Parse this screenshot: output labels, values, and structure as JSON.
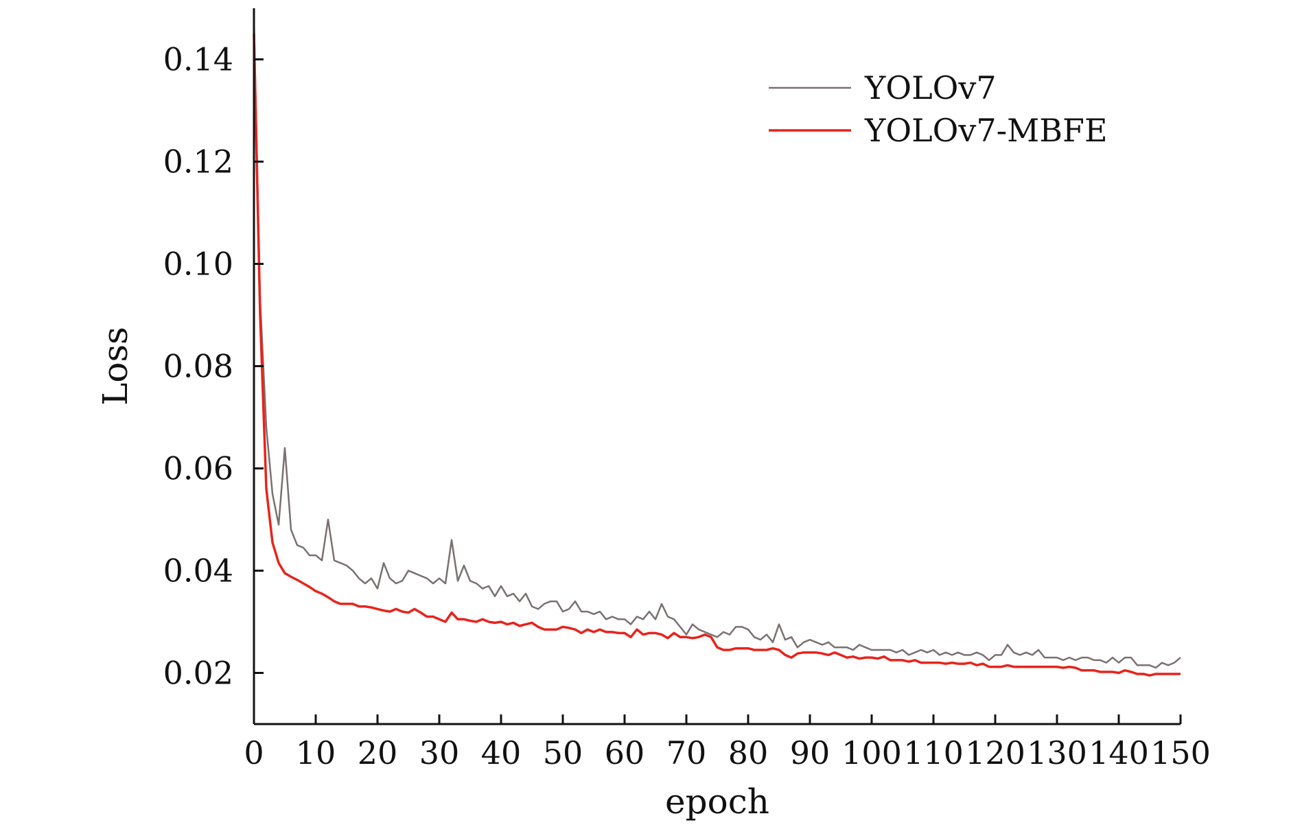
{
  "chart_data": {
    "type": "line",
    "title": "",
    "xlabel": "epoch",
    "ylabel": "Loss",
    "xlim": [
      0,
      150
    ],
    "ylim": [
      0.01,
      0.15
    ],
    "xticks": [
      "0",
      "10",
      "20",
      "30",
      "40",
      "50",
      "60",
      "70",
      "80",
      "90",
      "100",
      "110",
      "120",
      "130",
      "140",
      "150"
    ],
    "yticks": [
      "0.02",
      "0.04",
      "0.06",
      "0.08",
      "0.10",
      "0.12",
      "0.14"
    ],
    "grid": false,
    "legend": "top-right",
    "series": [
      {
        "name": "YOLOv7",
        "color": "#7a7070",
        "x": [
          0,
          1,
          2,
          3,
          4,
          5,
          6,
          7,
          8,
          9,
          10,
          11,
          12,
          13,
          14,
          15,
          16,
          17,
          18,
          19,
          20,
          21,
          22,
          23,
          24,
          25,
          26,
          27,
          28,
          29,
          30,
          31,
          32,
          33,
          34,
          35,
          36,
          37,
          38,
          39,
          40,
          41,
          42,
          43,
          44,
          45,
          46,
          47,
          48,
          49,
          50,
          51,
          52,
          53,
          54,
          55,
          56,
          57,
          58,
          59,
          60,
          61,
          62,
          63,
          64,
          65,
          66,
          67,
          68,
          69,
          70,
          71,
          72,
          73,
          74,
          75,
          76,
          77,
          78,
          79,
          80,
          81,
          82,
          83,
          84,
          85,
          86,
          87,
          88,
          89,
          90,
          91,
          92,
          93,
          94,
          95,
          96,
          97,
          98,
          99,
          100,
          101,
          102,
          103,
          104,
          105,
          106,
          107,
          108,
          109,
          110,
          111,
          112,
          113,
          114,
          115,
          116,
          117,
          118,
          119,
          120,
          121,
          122,
          123,
          124,
          125,
          126,
          127,
          128,
          129,
          130,
          131,
          132,
          133,
          134,
          135,
          136,
          137,
          138,
          139,
          140,
          141,
          142,
          143,
          144,
          145,
          146,
          147,
          148,
          149,
          150
        ],
        "y": [
          0.148,
          0.093,
          0.068,
          0.055,
          0.049,
          0.064,
          0.048,
          0.045,
          0.0445,
          0.043,
          0.043,
          0.042,
          0.05,
          0.042,
          0.0415,
          0.041,
          0.04,
          0.0385,
          0.0375,
          0.0385,
          0.0365,
          0.0415,
          0.0385,
          0.0375,
          0.038,
          0.04,
          0.0395,
          0.039,
          0.0385,
          0.0375,
          0.0385,
          0.0375,
          0.046,
          0.038,
          0.041,
          0.038,
          0.0375,
          0.0365,
          0.037,
          0.035,
          0.037,
          0.035,
          0.0355,
          0.034,
          0.0355,
          0.033,
          0.0325,
          0.0335,
          0.034,
          0.034,
          0.032,
          0.0325,
          0.034,
          0.032,
          0.032,
          0.0315,
          0.032,
          0.0305,
          0.031,
          0.0305,
          0.0305,
          0.0295,
          0.031,
          0.0305,
          0.032,
          0.0305,
          0.0335,
          0.031,
          0.0305,
          0.029,
          0.0275,
          0.0295,
          0.0285,
          0.028,
          0.0275,
          0.027,
          0.028,
          0.0275,
          0.029,
          0.029,
          0.0285,
          0.027,
          0.0265,
          0.0275,
          0.026,
          0.0295,
          0.0265,
          0.027,
          0.025,
          0.026,
          0.0265,
          0.026,
          0.0255,
          0.026,
          0.025,
          0.025,
          0.025,
          0.0245,
          0.0255,
          0.025,
          0.0245,
          0.0245,
          0.0245,
          0.0245,
          0.024,
          0.0245,
          0.0235,
          0.024,
          0.0245,
          0.024,
          0.0245,
          0.0235,
          0.024,
          0.0235,
          0.024,
          0.0235,
          0.0235,
          0.024,
          0.0235,
          0.0225,
          0.0235,
          0.0235,
          0.0255,
          0.024,
          0.0235,
          0.024,
          0.0235,
          0.0245,
          0.023,
          0.023,
          0.023,
          0.0225,
          0.023,
          0.0225,
          0.023,
          0.023,
          0.0225,
          0.0225,
          0.022,
          0.023,
          0.022,
          0.023,
          0.023,
          0.0215,
          0.0215,
          0.0215,
          0.021,
          0.022,
          0.0215,
          0.022,
          0.023
        ]
      },
      {
        "name": "YOLOv7-MBFE",
        "color": "#e8231b",
        "x": [
          0,
          1,
          2,
          3,
          4,
          5,
          6,
          7,
          8,
          9,
          10,
          11,
          12,
          13,
          14,
          15,
          16,
          17,
          18,
          19,
          20,
          21,
          22,
          23,
          24,
          25,
          26,
          27,
          28,
          29,
          30,
          31,
          32,
          33,
          34,
          35,
          36,
          37,
          38,
          39,
          40,
          41,
          42,
          43,
          44,
          45,
          46,
          47,
          48,
          49,
          50,
          51,
          52,
          53,
          54,
          55,
          56,
          57,
          58,
          59,
          60,
          61,
          62,
          63,
          64,
          65,
          66,
          67,
          68,
          69,
          70,
          71,
          72,
          73,
          74,
          75,
          76,
          77,
          78,
          79,
          80,
          81,
          82,
          83,
          84,
          85,
          86,
          87,
          88,
          89,
          90,
          91,
          92,
          93,
          94,
          95,
          96,
          97,
          98,
          99,
          100,
          101,
          102,
          103,
          104,
          105,
          106,
          107,
          108,
          109,
          110,
          111,
          112,
          113,
          114,
          115,
          116,
          117,
          118,
          119,
          120,
          121,
          122,
          123,
          124,
          125,
          126,
          127,
          128,
          129,
          130,
          131,
          132,
          133,
          134,
          135,
          136,
          137,
          138,
          139,
          140,
          141,
          142,
          143,
          144,
          145,
          146,
          147,
          148,
          149,
          150
        ],
        "y": [
          0.145,
          0.09,
          0.056,
          0.0455,
          0.0415,
          0.0395,
          0.0388,
          0.0382,
          0.0375,
          0.0368,
          0.036,
          0.0355,
          0.0348,
          0.034,
          0.0335,
          0.0335,
          0.0335,
          0.033,
          0.033,
          0.0328,
          0.0325,
          0.0322,
          0.032,
          0.0325,
          0.032,
          0.0318,
          0.0325,
          0.0318,
          0.031,
          0.031,
          0.0305,
          0.03,
          0.0318,
          0.0305,
          0.0305,
          0.0302,
          0.03,
          0.0305,
          0.03,
          0.0298,
          0.03,
          0.0295,
          0.0298,
          0.0292,
          0.0295,
          0.0298,
          0.029,
          0.0285,
          0.0285,
          0.0285,
          0.029,
          0.0288,
          0.0285,
          0.0278,
          0.0285,
          0.028,
          0.0285,
          0.028,
          0.028,
          0.0278,
          0.0278,
          0.027,
          0.0285,
          0.0275,
          0.0278,
          0.0278,
          0.0275,
          0.0268,
          0.0278,
          0.027,
          0.027,
          0.0268,
          0.027,
          0.0275,
          0.027,
          0.025,
          0.0245,
          0.0245,
          0.0248,
          0.0248,
          0.0248,
          0.0245,
          0.0245,
          0.0245,
          0.0248,
          0.0245,
          0.0235,
          0.023,
          0.0238,
          0.024,
          0.024,
          0.024,
          0.0238,
          0.0235,
          0.024,
          0.0235,
          0.023,
          0.0232,
          0.0228,
          0.023,
          0.023,
          0.0228,
          0.0232,
          0.0225,
          0.0225,
          0.0225,
          0.0222,
          0.0225,
          0.022,
          0.022,
          0.022,
          0.022,
          0.0218,
          0.022,
          0.0218,
          0.0218,
          0.022,
          0.0215,
          0.0218,
          0.0212,
          0.0212,
          0.0212,
          0.0215,
          0.0212,
          0.0212,
          0.0212,
          0.0212,
          0.0212,
          0.0212,
          0.0212,
          0.0212,
          0.021,
          0.0212,
          0.021,
          0.0205,
          0.0205,
          0.0205,
          0.0202,
          0.0202,
          0.0202,
          0.02,
          0.0205,
          0.0202,
          0.0198,
          0.0198,
          0.0195,
          0.0198,
          0.0198,
          0.0198,
          0.0198,
          0.0198
        ]
      }
    ]
  }
}
